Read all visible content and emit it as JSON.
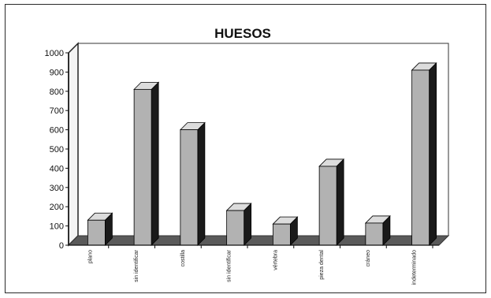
{
  "chart_data": {
    "type": "bar",
    "title": "HUESOS",
    "categories": [
      "plano",
      "sin identificar",
      "costilla",
      "sin identificar",
      "vértebra",
      "pieza dental",
      "cráneo",
      "indeterminado"
    ],
    "values": [
      130,
      810,
      600,
      180,
      110,
      410,
      115,
      910
    ],
    "ylim": [
      0,
      1000
    ],
    "yticks": [
      0,
      100,
      200,
      300,
      400,
      500,
      600,
      700,
      800,
      900,
      1000
    ],
    "legend": "none",
    "grid": false,
    "colors": {
      "bar_front": "#b2b2b2",
      "bar_side": "#1a1a1a",
      "bar_top": "#dcdcdc",
      "floor": "#5a5a5a",
      "wall": "#ffffff"
    }
  }
}
